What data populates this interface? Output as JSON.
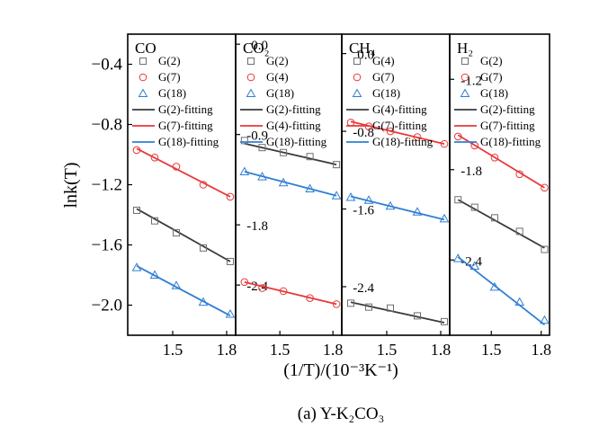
{
  "figure": {
    "xlabel": "(1/T)/(10⁻³K⁻¹)",
    "ylabel": "lnk(T)",
    "caption": "(a)  Y-K₂CO₃"
  },
  "chart_data": [
    {
      "type": "scatter",
      "title": "CO",
      "xlim": [
        1.25,
        1.85
      ],
      "ylim": [
        -2.2,
        -0.2
      ],
      "xticks": [
        1.5,
        1.8
      ],
      "xtick_labels": [
        "1.5",
        "1.8"
      ],
      "yticks": [
        -0.4,
        -0.8,
        -1.2,
        -1.6,
        -2.0
      ],
      "ytick_labels": [
        "−0.4",
        "−0.8",
        "−1.2",
        "−1.6",
        "−2.0"
      ],
      "legend_position": "top-right",
      "series": [
        {
          "name": "G(2)",
          "marker": "square",
          "color": "#6e6e6e",
          "x": [
            1.3,
            1.4,
            1.52,
            1.67,
            1.82
          ],
          "y": [
            -1.37,
            -1.44,
            -1.52,
            -1.62,
            -1.71
          ]
        },
        {
          "name": "G(7)",
          "marker": "circle",
          "color": "#e8383a",
          "x": [
            1.3,
            1.4,
            1.52,
            1.67,
            1.82
          ],
          "y": [
            -0.97,
            -1.02,
            -1.08,
            -1.2,
            -1.28
          ]
        },
        {
          "name": "G(18)",
          "marker": "triangle",
          "color": "#2f7fd4",
          "x": [
            1.3,
            1.4,
            1.52,
            1.67,
            1.82
          ],
          "y": [
            -1.75,
            -1.8,
            -1.87,
            -1.98,
            -2.06
          ]
        }
      ],
      "fits": [
        {
          "name": "G(2)-fitting",
          "color": "#3a3a3a",
          "x": [
            1.3,
            1.82
          ],
          "y": [
            -1.36,
            -1.71
          ]
        },
        {
          "name": "G(7)-fitting",
          "color": "#e8383a",
          "x": [
            1.3,
            1.82
          ],
          "y": [
            -0.96,
            -1.28
          ]
        },
        {
          "name": "G(18)-fitting",
          "color": "#2f7fd4",
          "x": [
            1.3,
            1.82
          ],
          "y": [
            -1.74,
            -2.07
          ]
        }
      ]
    },
    {
      "type": "scatter",
      "title": "CO₂",
      "xlim": [
        1.25,
        1.85
      ],
      "ylim": [
        -2.9,
        0.1
      ],
      "xticks": [
        1.5,
        1.8
      ],
      "xtick_labels": [
        "1.5",
        "1.8"
      ],
      "yticks": [
        0.0,
        -0.9,
        -1.8,
        -2.4
      ],
      "ytick_labels": [
        "0.0",
        "-0.9",
        "-1.8",
        "-2.4"
      ],
      "legend_position": "top-right",
      "series": [
        {
          "name": "G(2)",
          "marker": "square",
          "color": "#6e6e6e",
          "x": [
            1.3,
            1.4,
            1.52,
            1.67,
            1.82
          ],
          "y": [
            -0.96,
            -1.03,
            -1.08,
            -1.12,
            -1.2
          ]
        },
        {
          "name": "G(4)",
          "marker": "circle",
          "color": "#e8383a",
          "x": [
            1.3,
            1.4,
            1.52,
            1.67,
            1.82
          ],
          "y": [
            -2.37,
            -2.43,
            -2.46,
            -2.53,
            -2.59
          ]
        },
        {
          "name": "G(18)",
          "marker": "triangle",
          "color": "#2f7fd4",
          "x": [
            1.3,
            1.4,
            1.52,
            1.67,
            1.82
          ],
          "y": [
            -1.27,
            -1.32,
            -1.38,
            -1.44,
            -1.51
          ]
        }
      ],
      "fits": [
        {
          "name": "G(2)-fitting",
          "color": "#3a3a3a",
          "x": [
            1.3,
            1.82
          ],
          "y": [
            -0.99,
            -1.2
          ]
        },
        {
          "name": "G(4)-fitting",
          "color": "#e8383a",
          "x": [
            1.3,
            1.82
          ],
          "y": [
            -2.37,
            -2.59
          ]
        },
        {
          "name": "G(18)-fitting",
          "color": "#2f7fd4",
          "x": [
            1.3,
            1.82
          ],
          "y": [
            -1.27,
            -1.51
          ]
        }
      ]
    },
    {
      "type": "scatter",
      "title": "CH₄",
      "xlim": [
        1.25,
        1.85
      ],
      "ylim": [
        -2.9,
        0.2
      ],
      "xticks": [
        1.5,
        1.8
      ],
      "xtick_labels": [
        "1.5",
        "1.8"
      ],
      "yticks": [
        0.0,
        -0.8,
        -1.6,
        -2.4
      ],
      "ytick_labels": [
        "0.0",
        "-0.8",
        "-1.6",
        "-2.4"
      ],
      "legend_position": "top-right",
      "series": [
        {
          "name": "G(4)",
          "marker": "square",
          "color": "#6e6e6e",
          "x": [
            1.3,
            1.4,
            1.52,
            1.67,
            1.82
          ],
          "y": [
            -2.57,
            -2.61,
            -2.62,
            -2.7,
            -2.76
          ]
        },
        {
          "name": "G(7)",
          "marker": "circle",
          "color": "#e8383a",
          "x": [
            1.3,
            1.4,
            1.52,
            1.67,
            1.82
          ],
          "y": [
            -0.71,
            -0.75,
            -0.8,
            -0.86,
            -0.93
          ]
        },
        {
          "name": "G(18)",
          "marker": "triangle",
          "color": "#2f7fd4",
          "x": [
            1.3,
            1.4,
            1.52,
            1.67,
            1.82
          ],
          "y": [
            -1.48,
            -1.51,
            -1.57,
            -1.63,
            -1.7
          ]
        }
      ],
      "fits": [
        {
          "name": "G(4)-fitting",
          "color": "#3a3a3a",
          "x": [
            1.3,
            1.82
          ],
          "y": [
            -2.56,
            -2.77
          ]
        },
        {
          "name": "G(7)-fitting",
          "color": "#e8383a",
          "x": [
            1.3,
            1.82
          ],
          "y": [
            -0.7,
            -0.93
          ]
        },
        {
          "name": "G(18)-fitting",
          "color": "#2f7fd4",
          "x": [
            1.3,
            1.82
          ],
          "y": [
            -1.47,
            -1.71
          ]
        }
      ]
    },
    {
      "type": "scatter",
      "title": "H₂",
      "xlim": [
        1.25,
        1.85
      ],
      "ylim": [
        -2.9,
        -0.9
      ],
      "xticks": [
        1.5,
        1.8
      ],
      "xtick_labels": [
        "1.5",
        "1.8"
      ],
      "yticks": [
        -1.2,
        -1.8,
        -2.4
      ],
      "ytick_labels": [
        "-1.2",
        "-1.8",
        "-2.4"
      ],
      "legend_position": "top-right",
      "series": [
        {
          "name": "G(2)",
          "marker": "square",
          "color": "#6e6e6e",
          "x": [
            1.3,
            1.4,
            1.52,
            1.67,
            1.82
          ],
          "y": [
            -2.0,
            -2.05,
            -2.12,
            -2.21,
            -2.33
          ]
        },
        {
          "name": "G(7)",
          "marker": "circle",
          "color": "#e8383a",
          "x": [
            1.3,
            1.4,
            1.52,
            1.67,
            1.82
          ],
          "y": [
            -1.58,
            -1.64,
            -1.72,
            -1.83,
            -1.92
          ]
        },
        {
          "name": "G(18)",
          "marker": "triangle",
          "color": "#2f7fd4",
          "x": [
            1.3,
            1.4,
            1.52,
            1.67,
            1.82
          ],
          "y": [
            -2.39,
            -2.44,
            -2.58,
            -2.68,
            -2.8
          ]
        }
      ],
      "fits": [
        {
          "name": "G(2)-fitting",
          "color": "#3a3a3a",
          "x": [
            1.3,
            1.82
          ],
          "y": [
            -2.0,
            -2.32
          ]
        },
        {
          "name": "G(7)-fitting",
          "color": "#e8383a",
          "x": [
            1.3,
            1.82
          ],
          "y": [
            -1.57,
            -1.92
          ]
        },
        {
          "name": "G(18)-fitting",
          "color": "#2f7fd4",
          "x": [
            1.3,
            1.82
          ],
          "y": [
            -2.38,
            -2.83
          ]
        }
      ]
    }
  ]
}
